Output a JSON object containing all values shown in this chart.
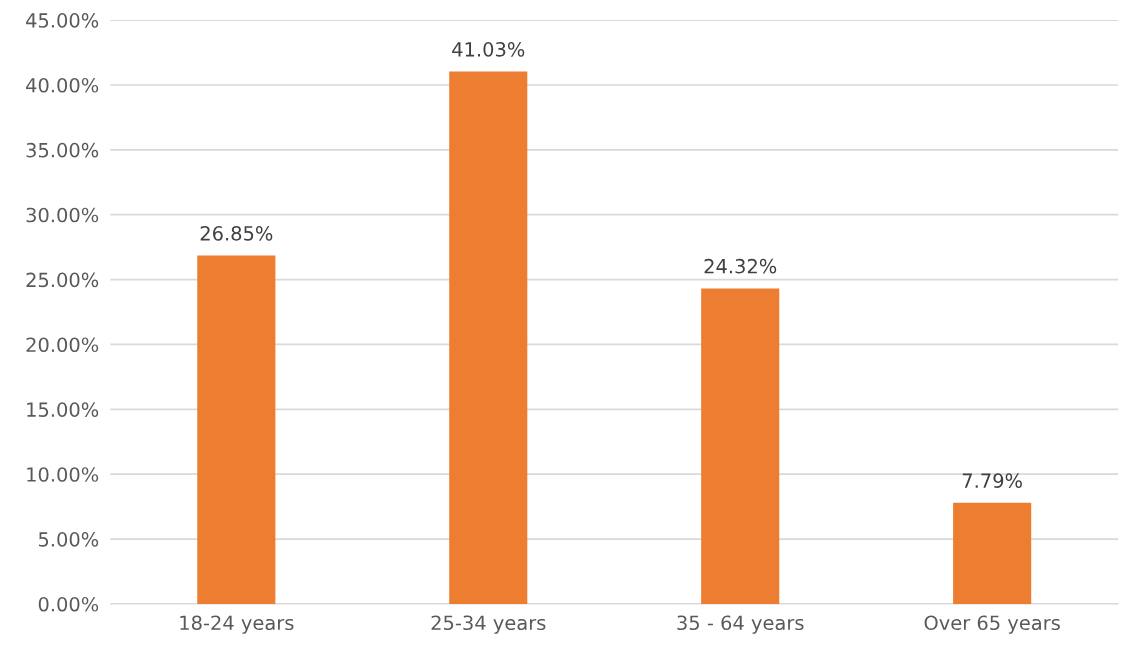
{
  "chart_data": {
    "type": "bar",
    "categories": [
      "18-24 years",
      "25-34 years",
      "35 - 64 years",
      "Over 65 years"
    ],
    "values": [
      26.85,
      41.03,
      24.32,
      7.79
    ],
    "value_labels": [
      "26.85%",
      "41.03%",
      "24.32%",
      "7.79%"
    ],
    "color": "#ed7d31",
    "ylim": [
      0,
      45
    ],
    "yticks": [
      {
        "value": 0,
        "label": "0.00%"
      },
      {
        "value": 5,
        "label": "5.00%"
      },
      {
        "value": 10,
        "label": "10.00%"
      },
      {
        "value": 15,
        "label": "15.00%"
      },
      {
        "value": 20,
        "label": "20.00%"
      },
      {
        "value": 25,
        "label": "25.00%"
      },
      {
        "value": 30,
        "label": "30.00%"
      },
      {
        "value": 35,
        "label": "35.00%"
      },
      {
        "value": 40,
        "label": "40.00%"
      },
      {
        "value": 45,
        "label": "45.00%"
      }
    ],
    "grid": "y",
    "legend": false
  }
}
